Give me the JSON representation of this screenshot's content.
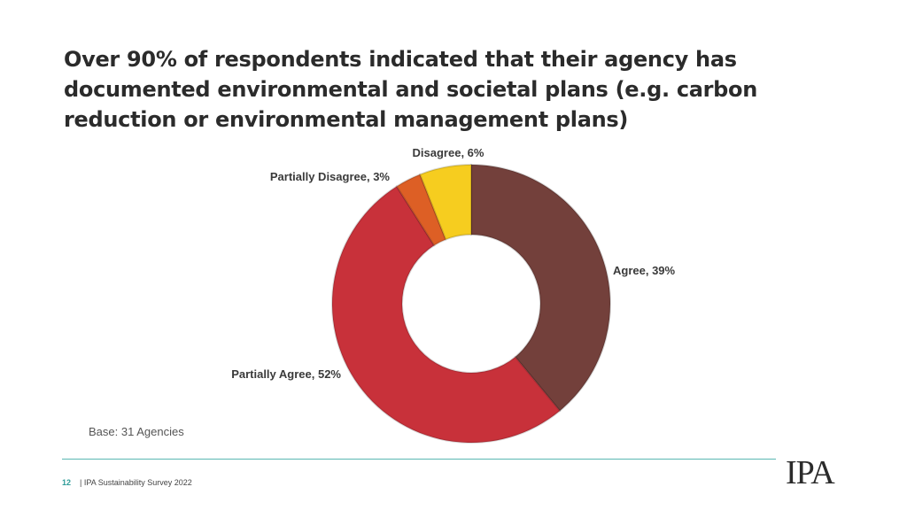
{
  "title": "Over 90% of respondents indicated that their agency has documented environmental and societal plans (e.g. carbon reduction or environmental management plans)",
  "base_note": "Base: 31 Agencies",
  "footer": {
    "page_number": "12",
    "source": "| IPA Sustainability Survey 2022"
  },
  "logo_text": "IPA",
  "chart_data": {
    "type": "pie",
    "donut": true,
    "slices": [
      {
        "label": "Agree, 39%",
        "value": 39,
        "color": "#73403b"
      },
      {
        "label": "Partially Agree, 52%",
        "value": 52,
        "color": "#c8313a"
      },
      {
        "label": "Partially Disagree, 3%",
        "value": 3,
        "color": "#dd5f25"
      },
      {
        "label": "Disagree, 6%",
        "value": 6,
        "color": "#f6cd1f"
      }
    ]
  }
}
